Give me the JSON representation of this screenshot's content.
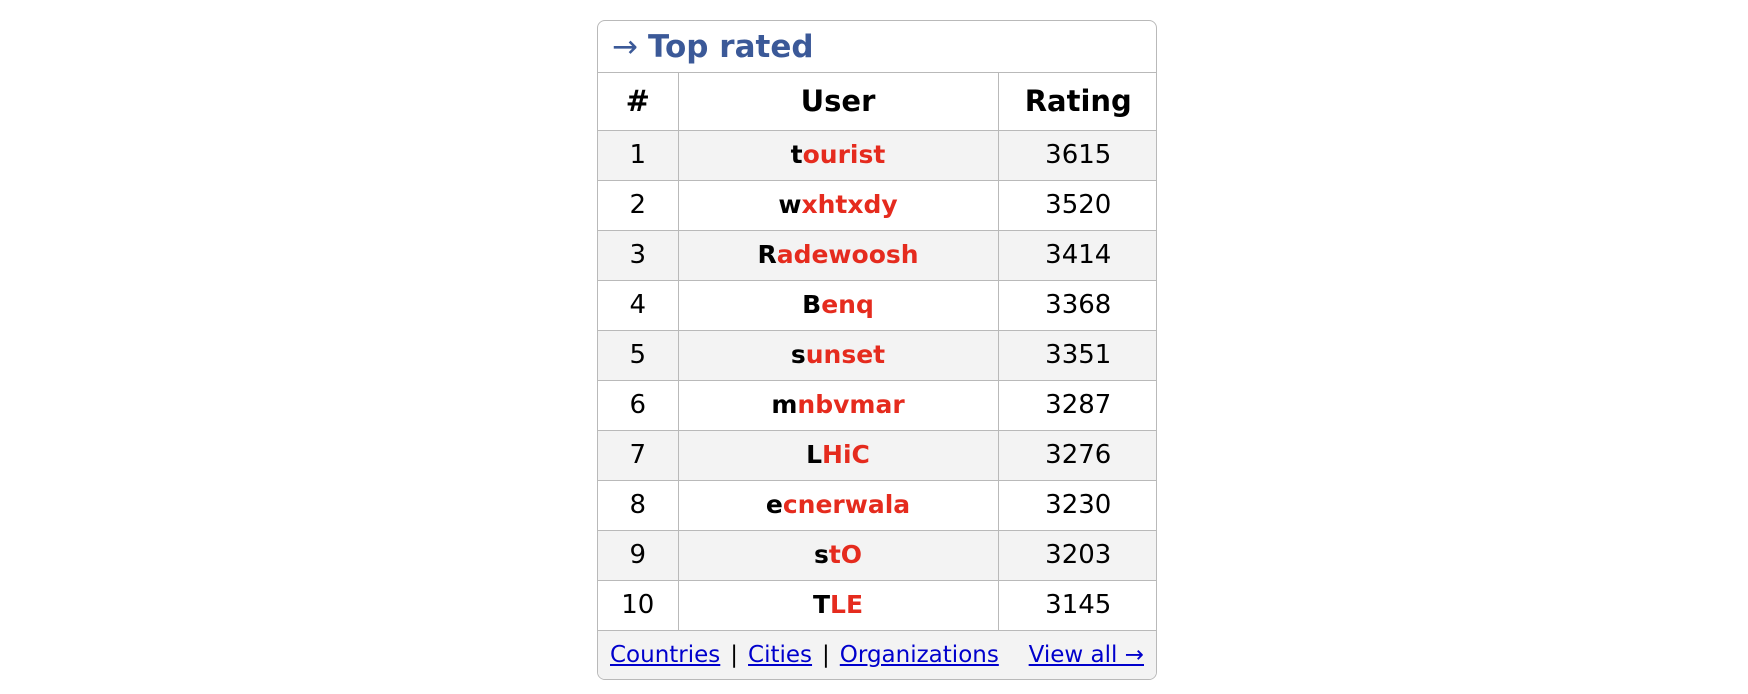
{
  "panel": {
    "arrow": "→",
    "title": "Top rated"
  },
  "table": {
    "headers": [
      "#",
      "User",
      "Rating"
    ],
    "rows": [
      {
        "rank": "1",
        "first": "t",
        "rest": "ourist",
        "rating": "3615"
      },
      {
        "rank": "2",
        "first": "w",
        "rest": "xhtxdy",
        "rating": "3520"
      },
      {
        "rank": "3",
        "first": "R",
        "rest": "adewoosh",
        "rating": "3414"
      },
      {
        "rank": "4",
        "first": "B",
        "rest": "enq",
        "rating": "3368"
      },
      {
        "rank": "5",
        "first": "s",
        "rest": "unset",
        "rating": "3351"
      },
      {
        "rank": "6",
        "first": "m",
        "rest": "nbvmar",
        "rating": "3287"
      },
      {
        "rank": "7",
        "first": "L",
        "rest": "HiC",
        "rating": "3276"
      },
      {
        "rank": "8",
        "first": "e",
        "rest": "cnerwala",
        "rating": "3230"
      },
      {
        "rank": "9",
        "first": "s",
        "rest": "tO",
        "rating": "3203"
      },
      {
        "rank": "10",
        "first": "T",
        "rest": "LE",
        "rating": "3145"
      }
    ]
  },
  "footer": {
    "countries": "Countries",
    "cities": "Cities",
    "organizations": "Organizations",
    "separator": "|",
    "view_all": "View all →"
  },
  "colors": {
    "title": "#3b5998",
    "handle_red": "#e52b1e",
    "link": "#0000cc",
    "stripe": "#f3f3f3",
    "border": "#b9b9b9"
  }
}
